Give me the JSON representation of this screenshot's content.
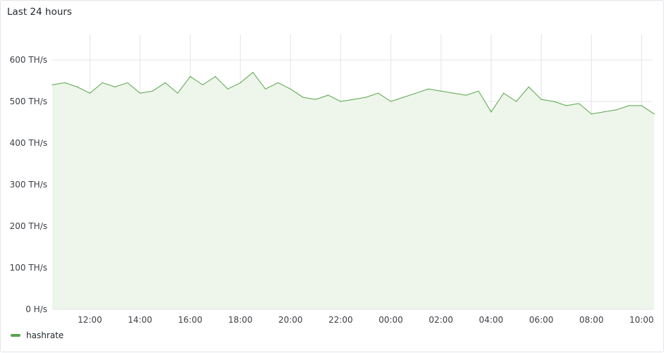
{
  "panel": {
    "title": "Last 24 hours"
  },
  "chart_data": {
    "type": "area",
    "title": "Last 24 hours",
    "x_start": "10:30",
    "x_step_minutes": 30,
    "x_tick_labels": [
      "12:00",
      "14:00",
      "16:00",
      "18:00",
      "20:00",
      "22:00",
      "00:00",
      "02:00",
      "04:00",
      "06:00",
      "08:00",
      "10:00"
    ],
    "y_tick_labels": [
      "0 H/s",
      "100 TH/s",
      "200 TH/s",
      "300 TH/s",
      "400 TH/s",
      "500 TH/s",
      "600 TH/s"
    ],
    "ylim": [
      0,
      650
    ],
    "y_unit": "TH/s",
    "grid": true,
    "legend_position": "bottom-left",
    "series": [
      {
        "name": "hashrate",
        "color": "#56a64b",
        "fill": "#eef5ea",
        "values": [
          540,
          545,
          535,
          520,
          545,
          535,
          545,
          520,
          525,
          545,
          520,
          560,
          540,
          560,
          530,
          545,
          570,
          530,
          545,
          530,
          510,
          505,
          515,
          500,
          505,
          510,
          520,
          500,
          510,
          520,
          530,
          525,
          520,
          515,
          525,
          475,
          520,
          500,
          535,
          505,
          500,
          490,
          495,
          470,
          475,
          480,
          490,
          490,
          470
        ]
      }
    ]
  }
}
